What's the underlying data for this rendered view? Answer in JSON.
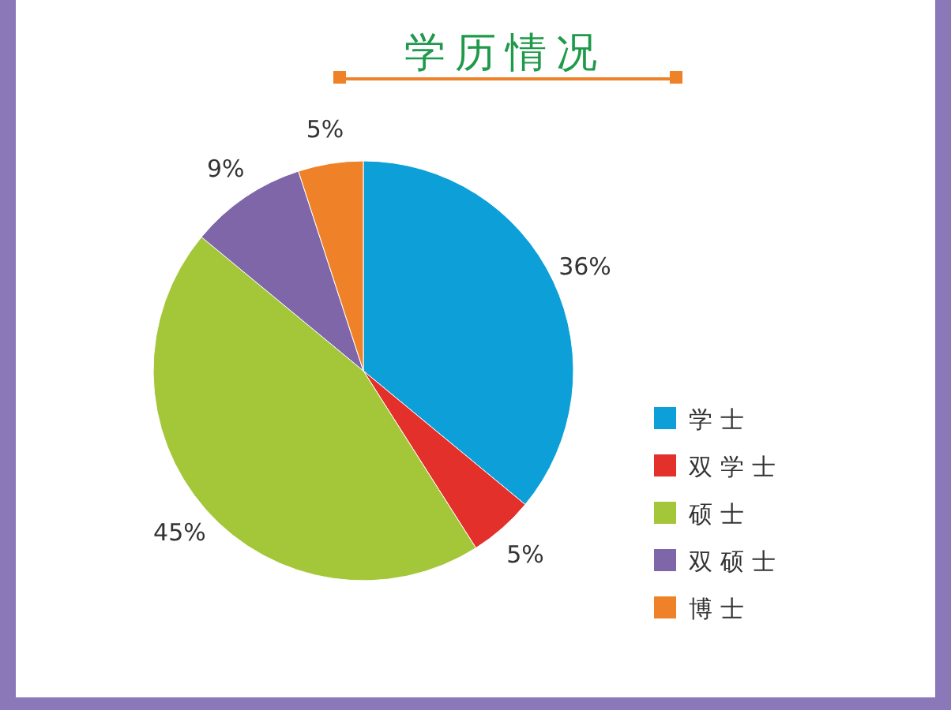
{
  "chart_data": {
    "type": "pie",
    "title": "学历情况",
    "categories": [
      "学士",
      "双学士",
      "硕士",
      "双硕士",
      "博士"
    ],
    "values": [
      36,
      5,
      45,
      9,
      5
    ],
    "colors": [
      "#0c9fd8",
      "#e3302b",
      "#a4c639",
      "#7f66a9",
      "#ef8229"
    ],
    "value_labels": [
      "36%",
      "5%",
      "45%",
      "9%",
      "5%"
    ],
    "legend": "right"
  }
}
